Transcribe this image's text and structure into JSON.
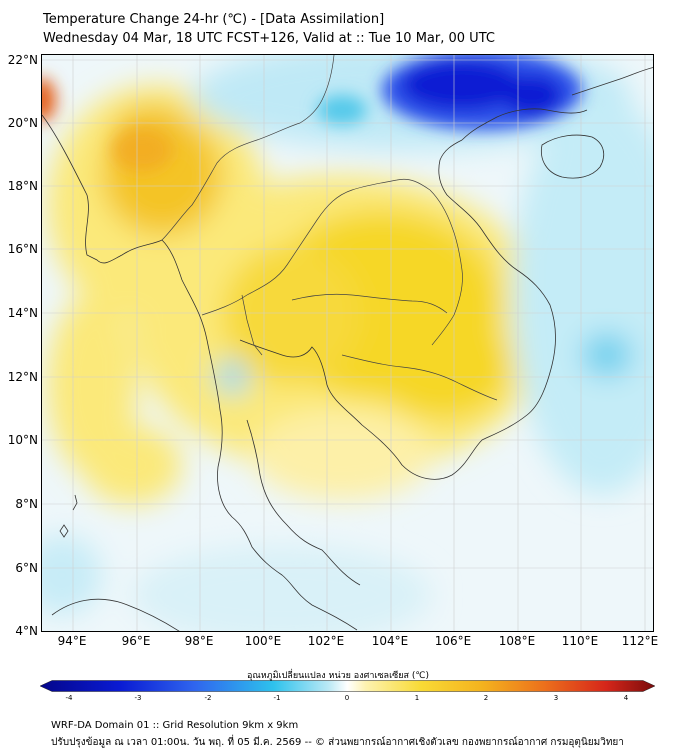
{
  "header": {
    "title": "Temperature Change 24-hr (℃) - [Data Assimilation]",
    "subtitle": "Wednesday 04 Mar, 18 UTC FCST+126, Valid at :: Tue 10 Mar, 00 UTC"
  },
  "map": {
    "lat_labels": [
      "22°N",
      "20°N",
      "18°N",
      "16°N",
      "14°N",
      "12°N",
      "10°N",
      "8°N",
      "6°N",
      "4°N"
    ],
    "lon_labels": [
      "94°E",
      "96°E",
      "98°E",
      "100°E",
      "102°E",
      "104°E",
      "106°E",
      "108°E",
      "110°E",
      "112°E"
    ],
    "lat_range": [
      4,
      22.2
    ],
    "lon_range": [
      93,
      112.3
    ],
    "colors": {
      "ocean_background": "#eef7fa",
      "warm_light": "#fbe97a",
      "warm_mid": "#f6d020",
      "warm_strong": "#f2a923",
      "hot_spot": "#e5621d",
      "cool_light": "#bce9f5",
      "cool_mid": "#55c9ea",
      "cold_strong": "#0a1bd3",
      "coastline": "#333333",
      "border": "#555555"
    }
  },
  "colorbar": {
    "title": "อุณหภูมิเปลี่ยนแปลง หน่วย องศาเซลเซียส (℃)",
    "tick_labels": [
      "-4",
      "-3",
      "-2",
      "-1",
      "0",
      "1",
      "2",
      "3",
      "4"
    ],
    "range": [
      -4,
      4
    ]
  },
  "footer": {
    "line1": "WRF-DA Domain 01 :: Grid Resolution 9km x 9km",
    "line2": "ปรับปรุงข้อมูล ณ เวลา 01:00น. วัน พฤ. ที่ 05 มี.ค. 2569 -- © ส่วนพยากรณ์อากาศเชิงตัวเลข กองพยากรณ์อากาศ กรมอุตุนิยมวิทยา"
  }
}
